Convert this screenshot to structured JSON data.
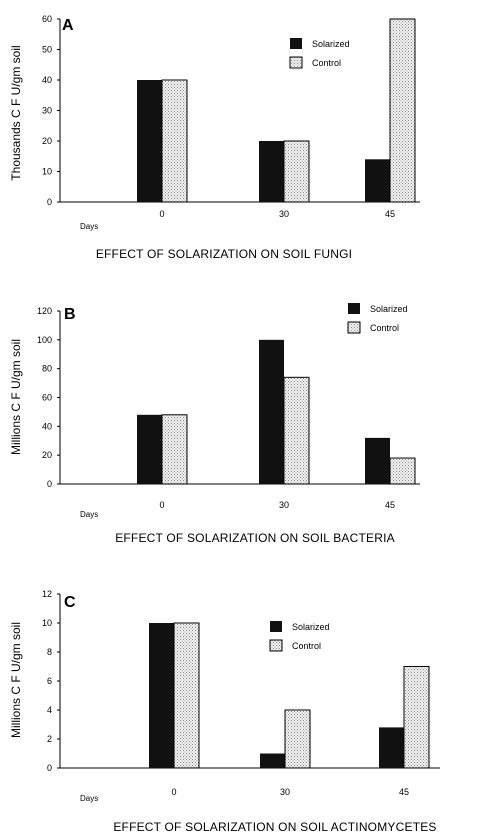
{
  "chart_data": [
    {
      "type": "bar",
      "panel": "A",
      "caption": "EFFECT OF SOLARIZATION ON SOIL FUNGI",
      "ylabel": "Thousands C F U/gm soil",
      "xlabel": "Days",
      "categories": [
        "0",
        "30",
        "45"
      ],
      "ylim": [
        0,
        60
      ],
      "yticks": [
        0,
        10,
        20,
        30,
        40,
        50,
        60
      ],
      "legend_position": "top-right",
      "series": [
        {
          "name": "Solarized",
          "color": "#111111",
          "pattern": "solid",
          "values": [
            40,
            20,
            14
          ]
        },
        {
          "name": "Control",
          "color": "#d8d8d8",
          "pattern": "dotted",
          "values": [
            40,
            20,
            60
          ]
        }
      ]
    },
    {
      "type": "bar",
      "panel": "B",
      "caption": "EFFECT OF SOLARIZATION ON SOIL BACTERIA",
      "ylabel": "Millions C F U/gm soil",
      "xlabel": "Days",
      "categories": [
        "0",
        "30",
        "45"
      ],
      "ylim": [
        0,
        120
      ],
      "yticks": [
        0,
        20,
        40,
        60,
        80,
        100,
        120
      ],
      "legend_position": "top-right",
      "series": [
        {
          "name": "Solarized",
          "color": "#111111",
          "pattern": "solid",
          "values": [
            48,
            100,
            32
          ]
        },
        {
          "name": "Control",
          "color": "#d8d8d8",
          "pattern": "dotted",
          "values": [
            48,
            74,
            18
          ]
        }
      ]
    },
    {
      "type": "bar",
      "panel": "C",
      "caption": "EFFECT OF SOLARIZATION ON SOIL ACTINOMYCETES",
      "ylabel": "Millions C F U/gm soil",
      "xlabel": "Days",
      "categories": [
        "0",
        "30",
        "45"
      ],
      "ylim": [
        0,
        12
      ],
      "yticks": [
        0,
        2,
        4,
        6,
        8,
        10,
        12
      ],
      "legend_position": "top-right",
      "series": [
        {
          "name": "Solarized",
          "color": "#111111",
          "pattern": "solid",
          "values": [
            10,
            1,
            2.8
          ]
        },
        {
          "name": "Control",
          "color": "#d8d8d8",
          "pattern": "dotted",
          "values": [
            10,
            4,
            7
          ]
        }
      ]
    }
  ]
}
